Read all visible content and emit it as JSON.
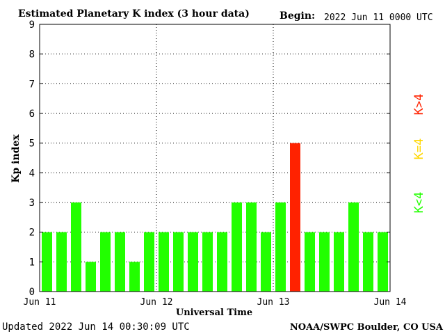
{
  "header": {
    "title": "Estimated Planetary K index (3 hour data)",
    "begin_label": "Begin:",
    "begin_value": "2022 Jun 11 0000 UTC"
  },
  "footer": {
    "updated": "Updated 2022 Jun 14 00:30:09 UTC",
    "source": "NOAA/SWPC Boulder, CO USA"
  },
  "legend": {
    "below": "K<4",
    "equal": "K=4",
    "above": "K>4"
  },
  "colors": {
    "below": "#22ff00",
    "equal": "#ffd700",
    "above": "#ff2200",
    "background": "#ffffff",
    "axis": "#000000"
  },
  "chart_data": {
    "type": "bar",
    "title": "Estimated Planetary K index (3 hour data)",
    "xlabel": "Universal Time",
    "ylabel": "Kp index",
    "ylim": [
      0,
      9
    ],
    "yticks": [
      "0",
      "1",
      "2",
      "3",
      "4",
      "5",
      "6",
      "7",
      "8",
      "9"
    ],
    "xticks": [
      "Jun 11",
      "Jun 12",
      "Jun 13",
      "Jun 14"
    ],
    "grid": "dotted",
    "values": [
      2,
      2,
      3,
      1,
      2,
      2,
      1,
      2,
      2,
      2,
      2,
      2,
      2,
      3,
      3,
      2,
      3,
      5,
      2,
      2,
      2,
      3,
      2,
      2
    ]
  }
}
